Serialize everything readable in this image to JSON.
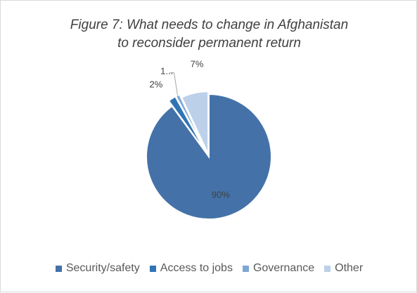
{
  "chart_data": {
    "type": "pie",
    "title": "Figure 7: What needs to change in Afghanistan to reconsider permanent return",
    "title_lines": [
      "Figure 7: What needs to change in Afghanistan",
      "to reconsider permanent return"
    ],
    "categories": [
      "Security/safety",
      "Access to jobs",
      "Governance",
      "Other"
    ],
    "values": [
      90,
      2,
      1,
      7
    ],
    "data_labels": [
      "90%",
      "2%",
      "1...",
      "7%"
    ],
    "colors": [
      "#4472a8",
      "#2f74b5",
      "#7fa6d4",
      "#bcd0ea"
    ],
    "exploded_slices": [
      "Access to jobs",
      "Governance",
      "Other"
    ],
    "legend_position": "bottom"
  }
}
